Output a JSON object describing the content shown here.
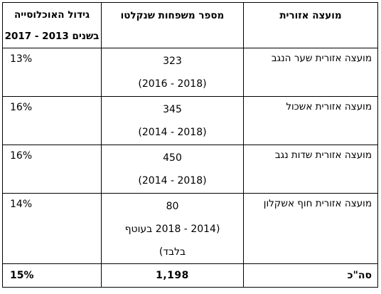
{
  "headers": {
    "region": "מועצה אזורית",
    "families": "מספר משפחות שנקלטו",
    "growth_line1": "גידול האוכלוסייה",
    "growth_line2": "בשנים 2013 - 2017"
  },
  "rows": [
    {
      "region": "מועצה אזורית שער הנגב",
      "families": [
        "323",
        "(2018 - 2016)"
      ],
      "growth": "13%"
    },
    {
      "region": "מועצה אזורית אשכול",
      "families": [
        "345",
        "(2018 - 2014)"
      ],
      "growth": "16%"
    },
    {
      "region": "מועצה אזורית שדות נגב",
      "families": [
        "450",
        "(2018 - 2014)"
      ],
      "growth": "16%"
    },
    {
      "region": "מועצה אזורית חוף אשקלון",
      "families": [
        "80",
        "(2014 - 2018 בעוטף",
        "בלבד)"
      ],
      "growth": "14%"
    }
  ],
  "total": {
    "label": "סה\"כ",
    "families": "1,198",
    "growth": "15%"
  }
}
